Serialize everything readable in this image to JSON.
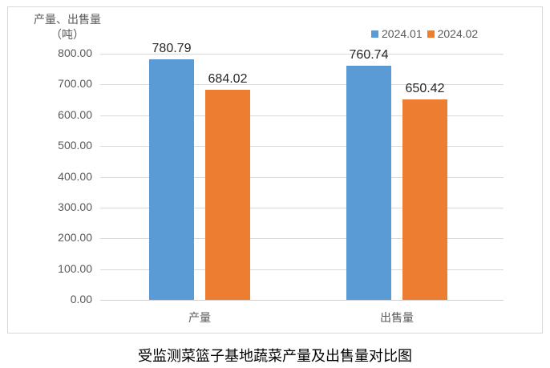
{
  "chart_data": {
    "type": "bar",
    "title": "受监测菜篮子基地蔬菜产量及出售量对比图",
    "xlabel": "",
    "ylabel": "产量、出售量（吨）",
    "ylim": [
      0,
      800
    ],
    "yticks": [
      "0.00",
      "100.00",
      "200.00",
      "300.00",
      "400.00",
      "500.00",
      "600.00",
      "700.00",
      "800.00"
    ],
    "grid": true,
    "legend_position": "top-right",
    "categories": [
      "产量",
      "出售量"
    ],
    "series": [
      {
        "name": "2024.01",
        "color": "#5b9bd5",
        "values": [
          780.79,
          760.74
        ],
        "labels": [
          "780.79",
          "760.74"
        ]
      },
      {
        "name": "2024.02",
        "color": "#ed7d31",
        "values": [
          684.02,
          650.42
        ],
        "labels": [
          "684.02",
          "650.42"
        ]
      }
    ]
  },
  "axis": {
    "ylabel_line1": "产量、出售量",
    "ylabel_line2": "（吨）"
  },
  "caption": "受监测菜篮子基地蔬菜产量及出售量对比图"
}
